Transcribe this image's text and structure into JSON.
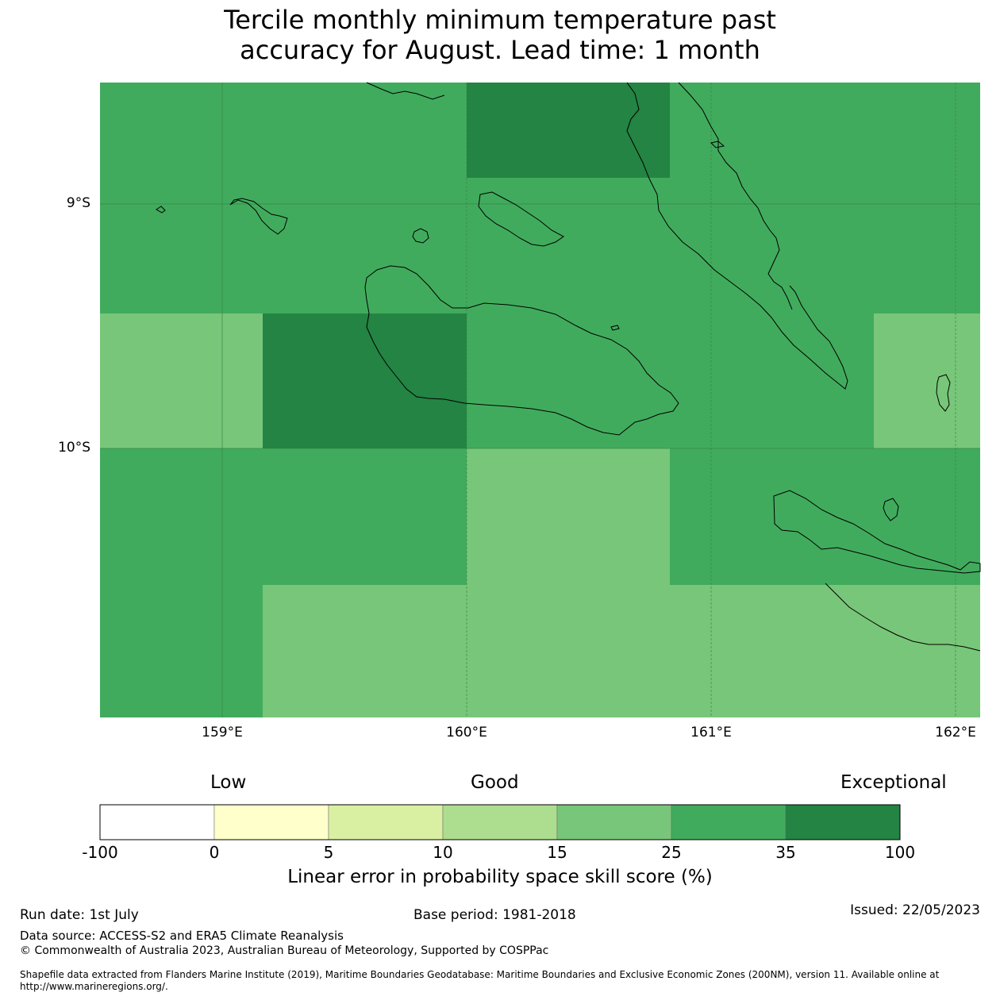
{
  "title_line1": "Tercile monthly minimum temperature past",
  "title_line2": "accuracy for August. Lead time: 1 month",
  "map": {
    "lat_labels": [
      "9°S",
      "10°S"
    ],
    "lon_labels": [
      "159°E",
      "160°E",
      "161°E",
      "162°E"
    ],
    "colors": {
      "c15_25": "#78c679",
      "c25_35": "#41ab5d",
      "c35_100": "#238443"
    }
  },
  "colorbar": {
    "category_low": "Low",
    "category_good": "Good",
    "category_exceptional": "Exceptional",
    "ticks": [
      "-100",
      "0",
      "5",
      "10",
      "15",
      "25",
      "35",
      "100"
    ],
    "colors": [
      "#ffffff",
      "#ffffcc",
      "#d9f0a3",
      "#addd8e",
      "#78c679",
      "#41ab5d",
      "#238443"
    ],
    "title": "Linear error in probability space skill score (%)"
  },
  "footer": {
    "run_date": "Run date: 1st July",
    "base_period": "Base period: 1981-2018",
    "issued": "Issued: 22/05/2023",
    "data_source": "Data source: ACCESS-S2 and ERA5 Climate Reanalysis",
    "copyright": "© Commonwealth of Australia 2023, Australian Bureau of Meteorology, Supported by COSPPac",
    "shapefile_line1": "Shapefile data extracted from Flanders Marine Institute (2019), Maritime Boundaries Geodatabase: Maritime Boundaries and Exclusive Economic Zones (200NM), version 11. Available online at",
    "shapefile_line2": "http://www.marineregions.org/."
  }
}
